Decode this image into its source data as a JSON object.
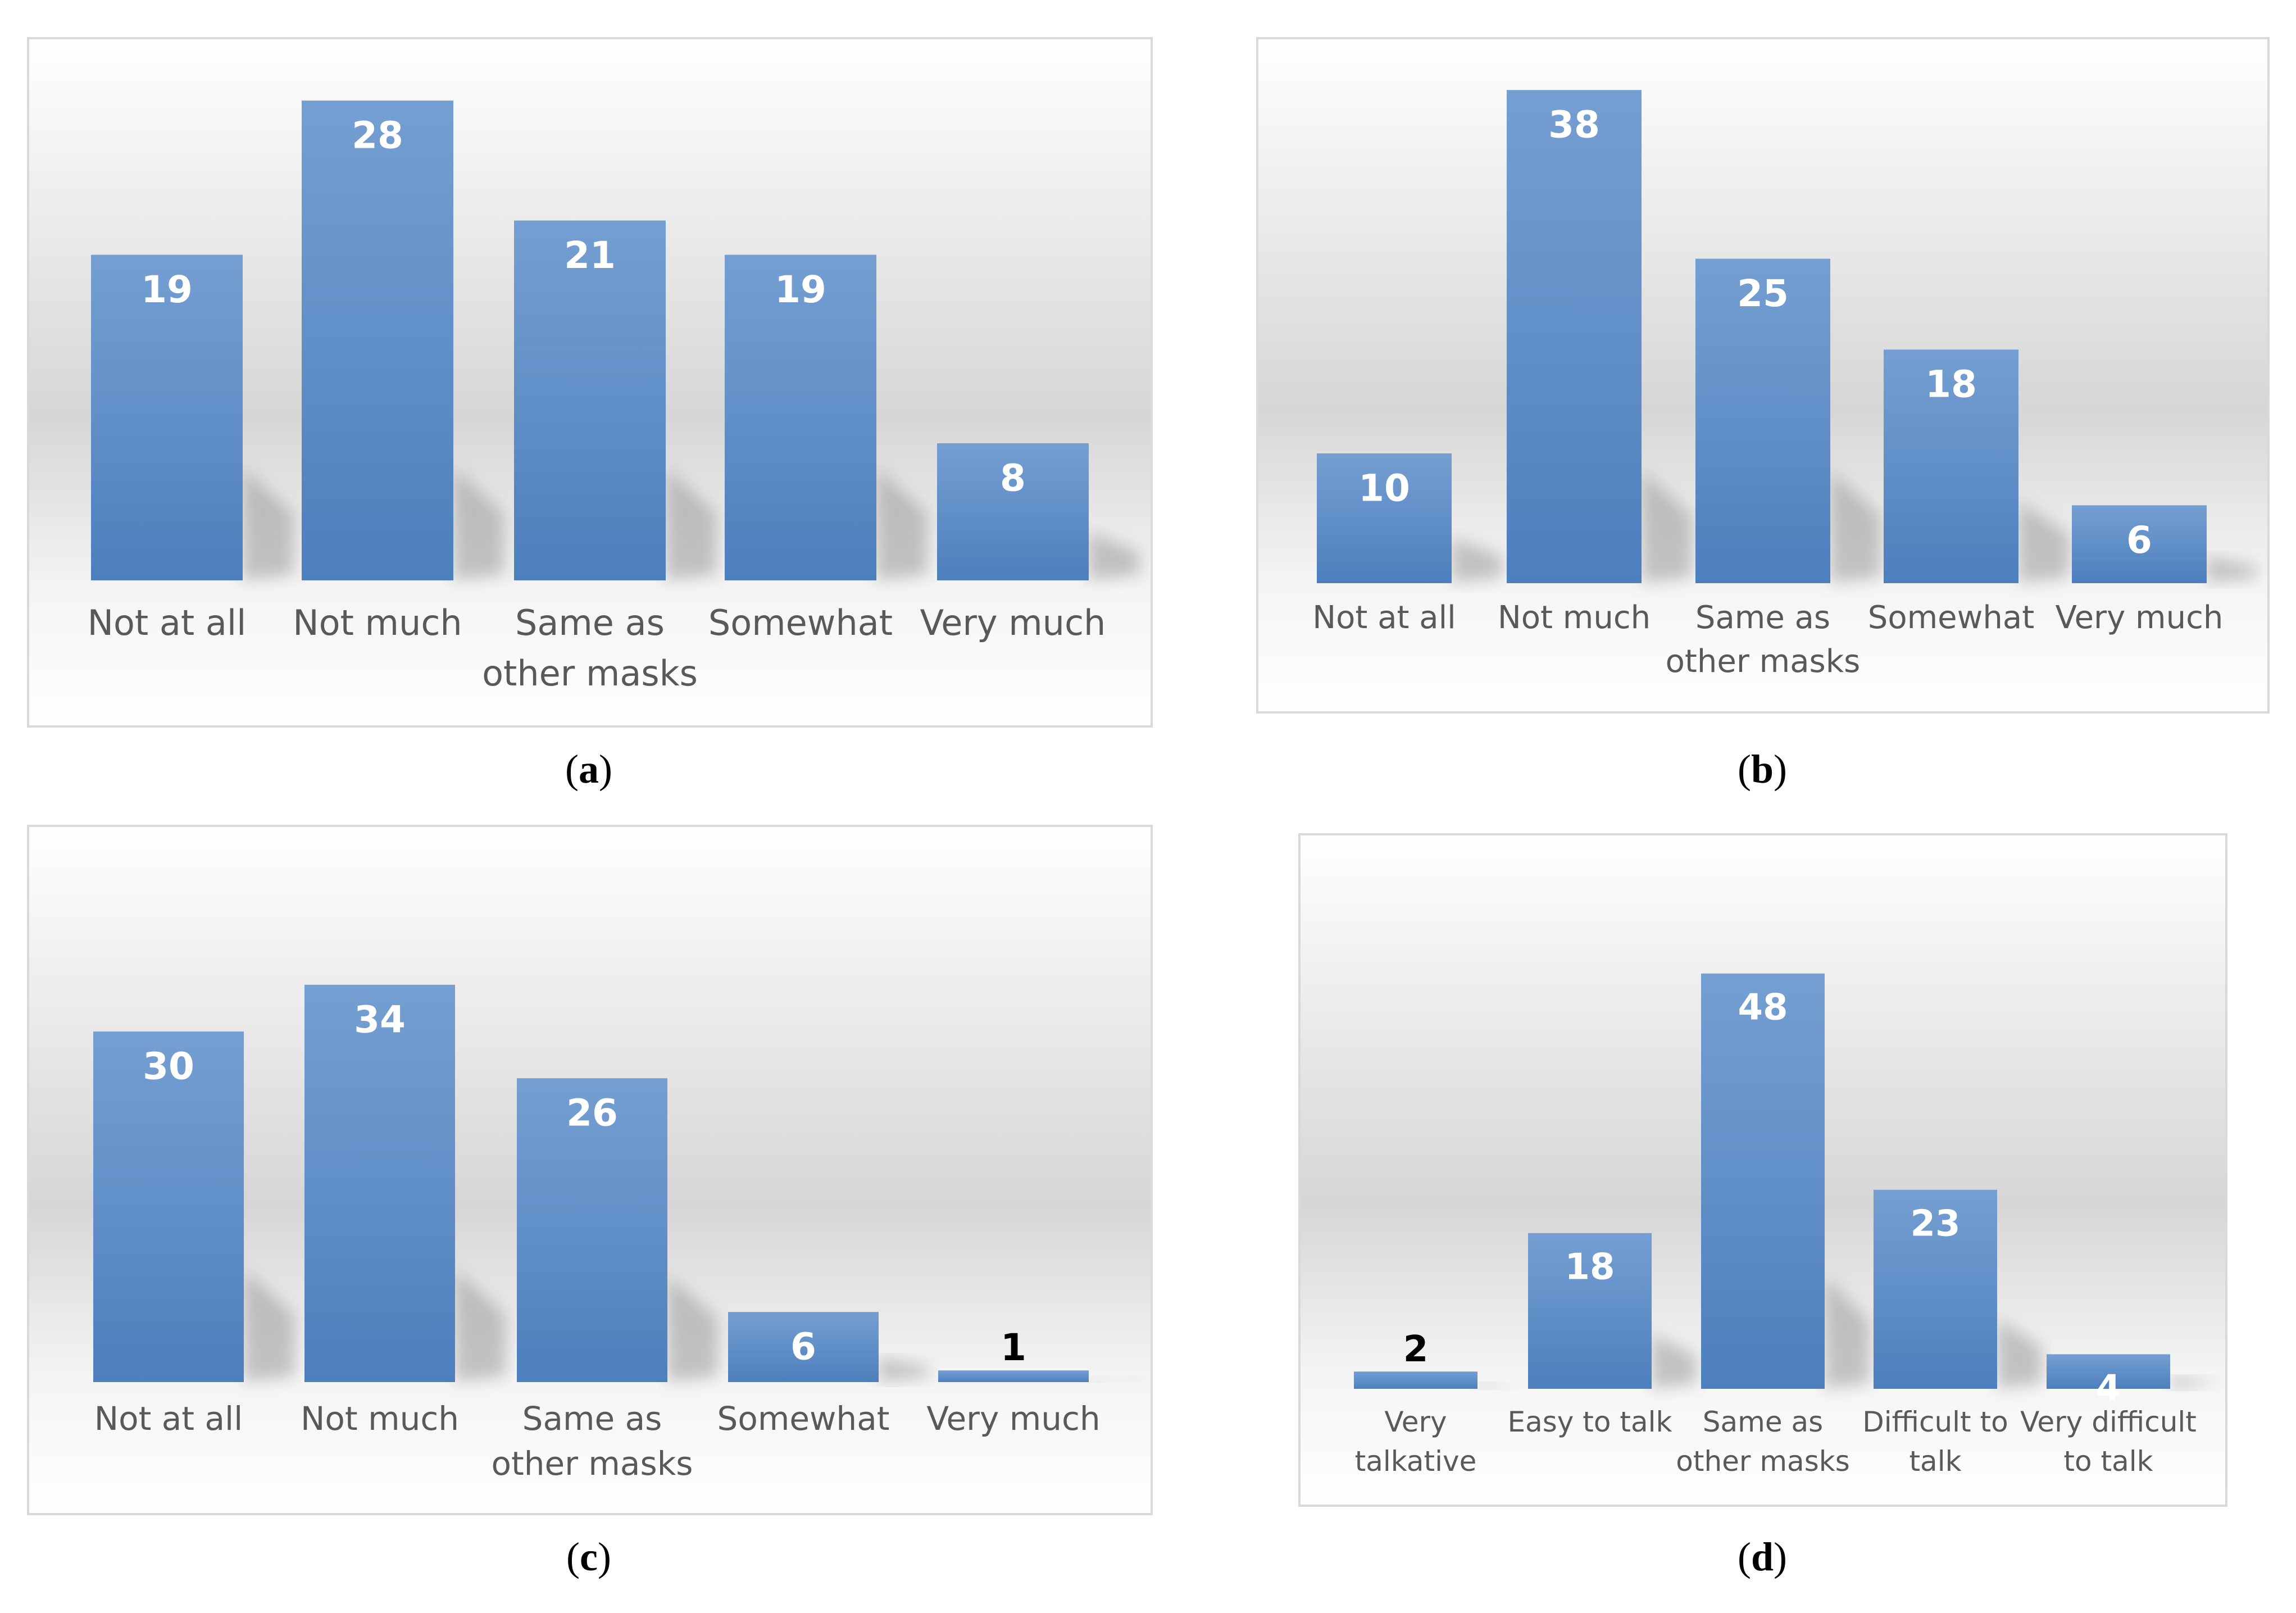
{
  "colors": {
    "bar": "#4f81bd",
    "value_label_light": "#ffffff",
    "value_label_dark": "#000000",
    "category_text": "#595959",
    "panel_border": "#d9d9d9"
  },
  "chart_data": [
    {
      "panel": "(a)",
      "caption_letter": "a",
      "type": "bar",
      "categories": [
        [
          "Not at all"
        ],
        [
          "Not much"
        ],
        [
          "Same as",
          "other masks"
        ],
        [
          "Somewhat"
        ],
        [
          "Very much"
        ]
      ],
      "values": [
        19,
        28,
        21,
        19,
        8
      ],
      "title": "",
      "xlabel": "",
      "ylabel": "",
      "data_labels": true,
      "grid": false,
      "legend": "none"
    },
    {
      "panel": "(b)",
      "caption_letter": "b",
      "type": "bar",
      "categories": [
        [
          "Not at all"
        ],
        [
          "Not much"
        ],
        [
          "Same as",
          "other masks"
        ],
        [
          "Somewhat"
        ],
        [
          "Very much"
        ]
      ],
      "values": [
        10,
        38,
        25,
        18,
        6
      ],
      "title": "",
      "xlabel": "",
      "ylabel": "",
      "data_labels": true,
      "grid": false,
      "legend": "none"
    },
    {
      "panel": "(c)",
      "caption_letter": "c",
      "type": "bar",
      "categories": [
        [
          "Not at all"
        ],
        [
          "Not much"
        ],
        [
          "Same as",
          "other masks"
        ],
        [
          "Somewhat"
        ],
        [
          "Very much"
        ]
      ],
      "values": [
        30,
        34,
        26,
        6,
        1
      ],
      "title": "",
      "xlabel": "",
      "ylabel": "",
      "data_labels": true,
      "grid": false,
      "legend": "none"
    },
    {
      "panel": "(d)",
      "caption_letter": "d",
      "type": "bar",
      "categories": [
        [
          "Very",
          "talkative"
        ],
        [
          "Easy to talk"
        ],
        [
          "Same as",
          "other masks"
        ],
        [
          "Difficult to",
          "talk"
        ],
        [
          "Very difficult",
          "to talk"
        ]
      ],
      "values": [
        2,
        18,
        48,
        23,
        4
      ],
      "title": "",
      "xlabel": "",
      "ylabel": "",
      "data_labels": true,
      "grid": false,
      "legend": "none"
    }
  ]
}
